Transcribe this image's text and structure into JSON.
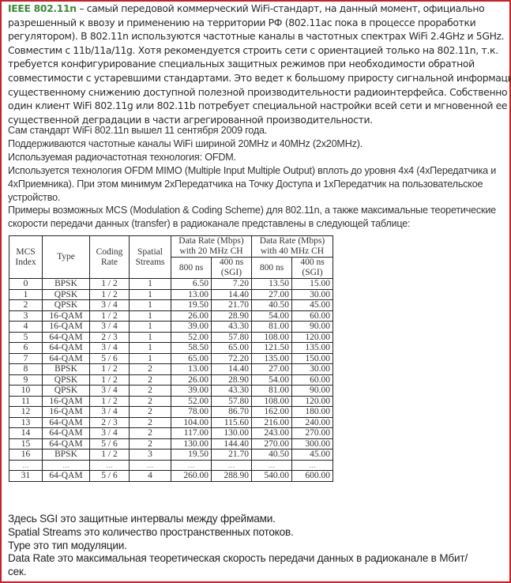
{
  "intro": {
    "term": "IEEE 802.11n",
    "lines": [
      " – самый передовой коммерческий WiFi-стандарт, на данный момент, официально",
      "разрешенный к ввозу и применению на территории РФ (802.11ac пока в процессе проработки",
      "регулятором). В 802.11n используются частотные каналы в частотных спектрах WiFi 2.4GHz и 5GHz.",
      "Совместим с 11b/11a/11g. Хотя рекомендуется строить сети с ориентацией только на 802.11n, т.к.",
      "требуется конфигурирование специальных защитных режимов при необходимости обратной",
      "совместимости с устаревшими стандартами. Это ведет к большому  приросту сигнальной информации и",
      "существенному снижению доступной полезной производительности радиоинтерфейса. Собственно даже",
      "один клиент WiFi 802.11g или 802.11b потребует специальной настройки всей сети и мгновенной ее",
      "существенной деградации в части агрегированной производительности."
    ]
  },
  "facts": [
    "Сам стандарт WiFi 802.11n вышел 11 сентября 2009 года.",
    "Поддерживаются частотные каналы WiFi шириной 20MHz и 40MHz (2x20MHz).",
    "Используемая радиочастотная технология: OFDM.",
    "Используется технология OFDM MIMO (Multiple Input Multiple Output) вплоть до уровня 4x4 (4xПередатчика и",
    "4xПриемника). При этом минимум 2xПередатчика на Точку Доступа и 1xПередатчик на пользовательское",
    "устройство.",
    "Примеры возможных MCS (Modulation & Coding Scheme) для 802.11n, а также максимальные теоретические",
    "скорости передачи данных (transfer) в радиоканале представлены в следующей таблице:"
  ],
  "table": {
    "headers": {
      "mcs": "MCS Index",
      "type": "Type",
      "coding": "Coding Rate",
      "streams": "Spatial Streams",
      "rate20": "Data Rate (Mbps) with 20 MHz CH",
      "rate40": "Data Rate (Mbps) with 40 MHz CH",
      "gi800": "800 ns",
      "gi400": "400 ns (SGI)"
    },
    "rows": [
      [
        "0",
        "BPSK",
        "1 / 2",
        "1",
        "6.50",
        "7.20",
        "13.50",
        "15.00"
      ],
      [
        "1",
        "QPSK",
        "1 / 2",
        "1",
        "13.00",
        "14.40",
        "27.00",
        "30.00"
      ],
      [
        "2",
        "QPSK",
        "3 / 4",
        "1",
        "19.50",
        "21.70",
        "40.50",
        "45.00"
      ],
      [
        "3",
        "16-QAM",
        "1 / 2",
        "1",
        "26.00",
        "28.90",
        "54.00",
        "60.00"
      ],
      [
        "4",
        "16-QAM",
        "3 / 4",
        "1",
        "39.00",
        "43.30",
        "81.00",
        "90.00"
      ],
      [
        "5",
        "64-QAM",
        "2 / 3",
        "1",
        "52.00",
        "57.80",
        "108.00",
        "120.00"
      ],
      [
        "6",
        "64-QAM",
        "3 / 4",
        "1",
        "58.50",
        "65.00",
        "121.50",
        "135.00"
      ],
      [
        "7",
        "64-QAM",
        "5 / 6",
        "1",
        "65.00",
        "72.20",
        "135.00",
        "150.00"
      ],
      [
        "8",
        "BPSK",
        "1 / 2",
        "2",
        "13.00",
        "14.40",
        "27.00",
        "30.00"
      ],
      [
        "9",
        "QPSK",
        "1 / 2",
        "2",
        "26.00",
        "28.90",
        "54.00",
        "60.00"
      ],
      [
        "10",
        "QPSK",
        "3 / 4",
        "2",
        "39.00",
        "43.30",
        "81.00",
        "90.00"
      ],
      [
        "11",
        "16-QAM",
        "1 / 2",
        "2",
        "52.00",
        "57.80",
        "108.00",
        "120.00"
      ],
      [
        "12",
        "16-QAM",
        "3 / 4",
        "2",
        "78.00",
        "86.70",
        "162.00",
        "180.00"
      ],
      [
        "13",
        "64-QAM",
        "2 / 3",
        "2",
        "104.00",
        "115.60",
        "216.00",
        "240.00"
      ],
      [
        "14",
        "64-QAM",
        "3 / 4",
        "2",
        "117.00",
        "130.00",
        "243.00",
        "270.00"
      ],
      [
        "15",
        "64-QAM",
        "5 / 6",
        "2",
        "130.00",
        "144.40",
        "270.00",
        "300.00"
      ],
      [
        "16",
        "BPSK",
        "1 / 2",
        "3",
        "19.50",
        "21.70",
        "40.50",
        "45.00"
      ],
      [
        "...",
        "...",
        "...",
        "...",
        "...",
        "...",
        "...",
        "..."
      ],
      [
        "31",
        "64-QAM",
        "5 / 6",
        "4",
        "260.00",
        "288.90",
        "540.00",
        "600.00"
      ]
    ]
  },
  "notes": [
    "Здесь SGI это защитные интервалы между фреймами.",
    "Spatial Streams это количество пространственных потоков.",
    "Type это тип модуляции.",
    "Data Rate это максимальная теоретическая скорость передачи данных в радиоканале в Мбит/",
    "сек."
  ],
  "accent": {
    "border": "#c8202a",
    "term": "#3d8a3a"
  }
}
